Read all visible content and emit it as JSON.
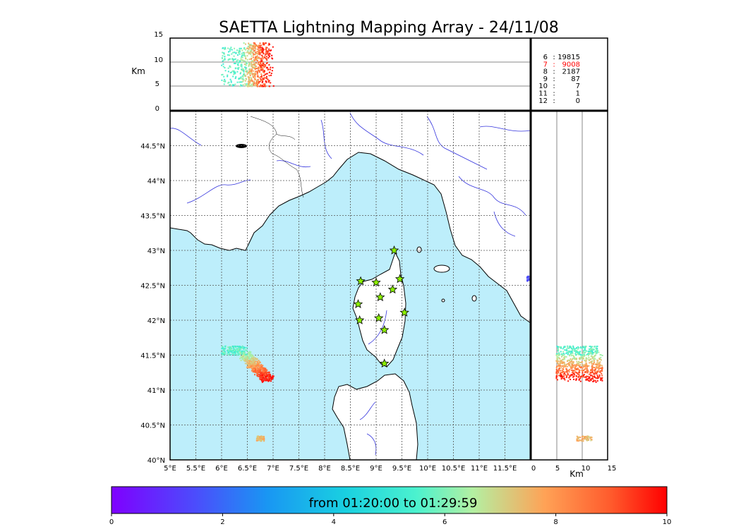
{
  "chart_data": {
    "type": "scatter",
    "title": "SAETTA Lightning Mapping Array - 24/11/08",
    "main_map": {
      "x_ticks": [
        "5°E",
        "5.5°E",
        "6°E",
        "6.5°E",
        "7°E",
        "7.5°E",
        "8°E",
        "8.5°E",
        "9°E",
        "9.5°E",
        "10°E",
        "10.5°E",
        "11°E",
        "11.5°E"
      ],
      "y_ticks": [
        "40°N",
        "40.5°N",
        "41°N",
        "41.5°N",
        "42°N",
        "42.5°N",
        "43°N",
        "43.5°N",
        "44°N",
        "44.5°N"
      ],
      "lon_range": [
        5,
        12
      ],
      "lat_range": [
        40,
        45
      ],
      "grid": true,
      "sea_color": "#bdeefb",
      "stations": [
        {
          "lon": 9.35,
          "lat": 43.0
        },
        {
          "lon": 8.7,
          "lat": 42.56
        },
        {
          "lon": 9.0,
          "lat": 42.54
        },
        {
          "lon": 9.46,
          "lat": 42.59
        },
        {
          "lon": 9.32,
          "lat": 42.44
        },
        {
          "lon": 9.08,
          "lat": 42.33
        },
        {
          "lon": 8.65,
          "lat": 42.23
        },
        {
          "lon": 9.55,
          "lat": 42.11
        },
        {
          "lon": 8.68,
          "lat": 42.0
        },
        {
          "lon": 9.05,
          "lat": 42.03
        },
        {
          "lon": 9.16,
          "lat": 41.86
        },
        {
          "lon": 9.16,
          "lat": 41.38
        }
      ],
      "station_color": "#8cf000"
    },
    "top_panel": {
      "ylabel": "Km",
      "y_ticks": [
        "0",
        "5",
        "10",
        "15"
      ],
      "y_range": [
        0,
        15
      ],
      "gridlines": [
        5,
        10
      ]
    },
    "side_panel": {
      "xlabel": "Km",
      "x_ticks": [
        "0",
        "5",
        "10",
        "15"
      ],
      "x_range": [
        0,
        15
      ],
      "gridlines": [
        5,
        10
      ]
    },
    "station_counts": [
      {
        "stations": "6",
        "sep": ":",
        "count": "19815",
        "color": "#000000"
      },
      {
        "stations": "7",
        "sep": ":",
        "count": "9008",
        "color": "#ff0000"
      },
      {
        "stations": "8",
        "sep": ":",
        "count": "2187",
        "color": "#000000"
      },
      {
        "stations": "9",
        "sep": ":",
        "count": "87",
        "color": "#000000"
      },
      {
        "stations": "10",
        "sep": ":",
        "count": "7",
        "color": "#000000"
      },
      {
        "stations": "11",
        "sep": ":",
        "count": "1",
        "color": "#000000"
      },
      {
        "stations": "12",
        "sep": ":",
        "count": "0",
        "color": "#000000"
      }
    ],
    "colorbar": {
      "label": "from 01:20:00 to 01:29:59",
      "ticks": [
        "0",
        "2",
        "4",
        "6",
        "8",
        "10"
      ],
      "range": [
        0,
        10
      ],
      "colormap": "rainbow"
    },
    "clusters": [
      {
        "name": "west",
        "lon_range": [
          6.0,
          6.9
        ],
        "lat_range": [
          41.15,
          41.65
        ],
        "time_range": [
          5,
          10
        ]
      },
      {
        "name": "south",
        "lon_range": [
          6.65,
          6.85
        ],
        "lat_range": [
          40.27,
          40.35
        ],
        "time_range": [
          7,
          8
        ]
      },
      {
        "name": "east-edge",
        "lon_range": [
          11.93,
          12.0
        ],
        "lat_range": [
          42.55,
          42.63
        ],
        "time_range": [
          1,
          2
        ]
      }
    ]
  }
}
